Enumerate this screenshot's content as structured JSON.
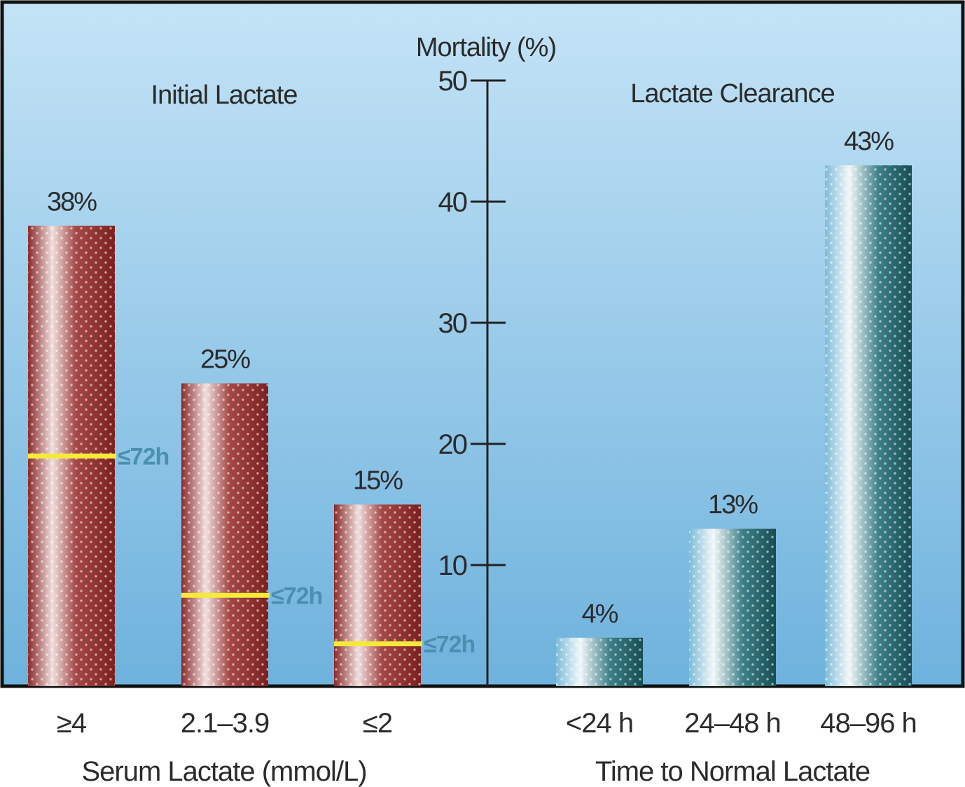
{
  "chart_data": {
    "type": "bar",
    "ylabel": "Mortality (%)",
    "ylim": [
      0,
      50
    ],
    "yticks": [
      10,
      20,
      30,
      40,
      50
    ],
    "panels": [
      {
        "title": "Initial Lactate",
        "xlabel": "Serum Lactate (mmol/L)",
        "categories": [
          "≥4",
          "2.1–3.9",
          "≤2"
        ],
        "values": [
          38,
          25,
          15
        ],
        "value_labels": [
          "38%",
          "25%",
          "15%"
        ],
        "color": "#8b2a2a",
        "markers": [
          {
            "value": 19,
            "label": "≤72h"
          },
          {
            "value": 7.5,
            "label": "≤72h"
          },
          {
            "value": 3.5,
            "label": "≤72h"
          }
        ]
      },
      {
        "title": "Lactate Clearance",
        "xlabel": "Time to Normal Lactate",
        "categories": [
          "<24 h",
          "24–48 h",
          "48–96 h"
        ],
        "values": [
          4,
          13,
          43
        ],
        "value_labels": [
          "4%",
          "13%",
          "43%"
        ],
        "color": "#1f5a60"
      }
    ],
    "grid": false,
    "colors": {
      "background_top": "#bfe0f5",
      "background_bottom": "#6fb3de",
      "marker_line": "#f5ea3a",
      "marker_text": "#4a8fb0"
    }
  }
}
